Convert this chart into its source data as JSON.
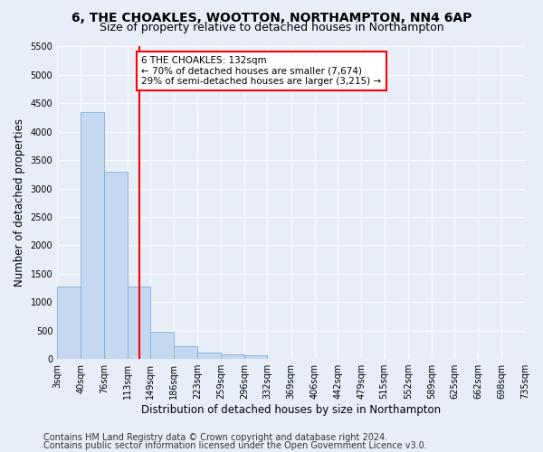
{
  "title": "6, THE CHOAKLES, WOOTTON, NORTHAMPTON, NN4 6AP",
  "subtitle": "Size of property relative to detached houses in Northampton",
  "xlabel": "Distribution of detached houses by size in Northampton",
  "ylabel": "Number of detached properties",
  "footer_line1": "Contains HM Land Registry data © Crown copyright and database right 2024.",
  "footer_line2": "Contains public sector information licensed under the Open Government Licence v3.0.",
  "bar_edges": [
    3,
    40,
    76,
    113,
    149,
    186,
    223,
    259,
    296,
    332,
    369,
    406,
    442,
    479,
    515,
    552,
    589,
    625,
    662,
    698,
    735
  ],
  "bar_heights": [
    1270,
    4350,
    3300,
    1280,
    480,
    220,
    110,
    75,
    70,
    0,
    0,
    0,
    0,
    0,
    0,
    0,
    0,
    0,
    0,
    0
  ],
  "bar_color": "#c5d8f0",
  "bar_edge_color": "#7bafd4",
  "property_line_x": 132,
  "property_line_color": "red",
  "annotation_text": "6 THE CHOAKLES: 132sqm\n← 70% of detached houses are smaller (7,674)\n29% of semi-detached houses are larger (3,215) →",
  "annotation_box_color": "red",
  "annotation_text_color": "black",
  "ylim": [
    0,
    5500
  ],
  "yticks": [
    0,
    500,
    1000,
    1500,
    2000,
    2500,
    3000,
    3500,
    4000,
    4500,
    5000,
    5500
  ],
  "bg_color": "#e8eef8",
  "plot_bg_color": "#e8eef8",
  "title_fontsize": 10,
  "subtitle_fontsize": 9,
  "axis_label_fontsize": 8.5,
  "tick_fontsize": 7,
  "footer_fontsize": 7
}
